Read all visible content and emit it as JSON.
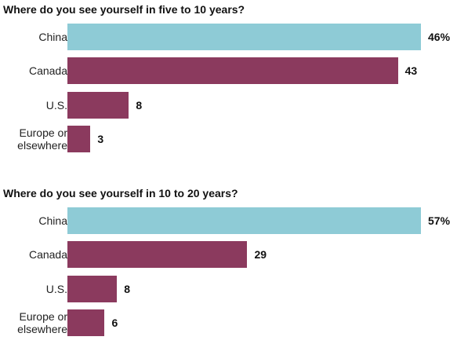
{
  "colors": {
    "china": "#8ecbd6",
    "other": "#8b3a5e"
  },
  "chart_data": [
    {
      "type": "bar",
      "orientation": "horizontal",
      "title": "Where do you see yourself in five to 10 years?",
      "categories": [
        "China",
        "Canada",
        "U.S.",
        "Europe or\nelsewhere"
      ],
      "values": [
        46,
        43,
        8,
        3
      ],
      "value_labels": [
        "46%",
        "43",
        "8",
        "3"
      ],
      "xlim": [
        0,
        46
      ]
    },
    {
      "type": "bar",
      "orientation": "horizontal",
      "title": "Where do you see yourself in 10 to 20 years?",
      "categories": [
        "China",
        "Canada",
        "U.S.",
        "Europe or\nelsewhere"
      ],
      "values": [
        57,
        29,
        8,
        6
      ],
      "value_labels": [
        "57%",
        "29",
        "8",
        "6"
      ],
      "xlim": [
        0,
        57
      ]
    }
  ]
}
